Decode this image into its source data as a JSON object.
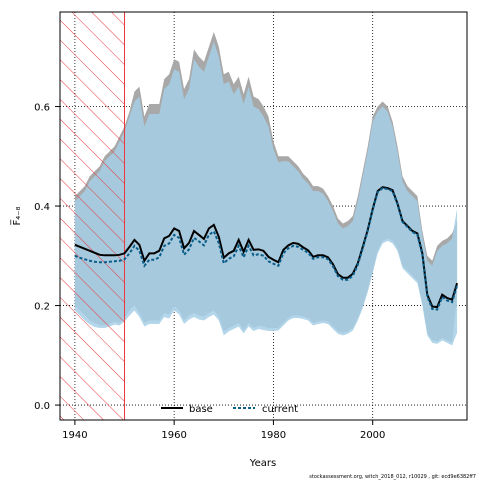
{
  "chart_data": {
    "type": "line",
    "xlabel": "Years",
    "ylabel": "F̅₄₋₈",
    "xlim": [
      1937,
      2019
    ],
    "ylim": [
      -0.03,
      0.79
    ],
    "xticks": [
      1940,
      1960,
      1980,
      2000
    ],
    "yticks": [
      0.0,
      0.2,
      0.4,
      0.6
    ],
    "xtick_labels": [
      "1940",
      "1960",
      "1980",
      "2000"
    ],
    "ytick_labels": [
      "0.0",
      "0.2",
      "0.4",
      "0.6"
    ],
    "grid": true,
    "legend_position": "bottom-center",
    "shaded_region": {
      "x_start": 1937,
      "x_end": 1950,
      "style": "red diagonal hatching"
    },
    "colors": {
      "base_band": "#a8a8a8",
      "current_band": "#a6cfe6",
      "overlap_band": "#a3c3d5",
      "base_line": "#000000",
      "current_line": "#0b5e8a",
      "hatch": "#e8383d"
    },
    "x": [
      1940,
      1941,
      1942,
      1943,
      1944,
      1945,
      1946,
      1947,
      1948,
      1949,
      1950,
      1951,
      1952,
      1953,
      1954,
      1955,
      1956,
      1957,
      1958,
      1959,
      1960,
      1961,
      1962,
      1963,
      1964,
      1965,
      1966,
      1967,
      1968,
      1969,
      1970,
      1971,
      1972,
      1973,
      1974,
      1975,
      1976,
      1977,
      1978,
      1979,
      1980,
      1981,
      1982,
      1983,
      1984,
      1985,
      1986,
      1987,
      1988,
      1989,
      1990,
      1991,
      1992,
      1993,
      1994,
      1995,
      1996,
      1997,
      1998,
      1999,
      2000,
      2001,
      2002,
      2003,
      2004,
      2005,
      2006,
      2007,
      2008,
      2009,
      2010,
      2011,
      2012,
      2013,
      2014,
      2015,
      2016,
      2017
    ],
    "series": [
      {
        "name": "base",
        "values": [
          0.322,
          0.318,
          0.314,
          0.31,
          0.306,
          0.302,
          0.301,
          0.301,
          0.301,
          0.302,
          0.305,
          0.318,
          0.332,
          0.322,
          0.29,
          0.305,
          0.305,
          0.31,
          0.335,
          0.34,
          0.355,
          0.35,
          0.315,
          0.326,
          0.35,
          0.342,
          0.334,
          0.355,
          0.362,
          0.338,
          0.296,
          0.305,
          0.31,
          0.332,
          0.308,
          0.332,
          0.312,
          0.313,
          0.31,
          0.298,
          0.292,
          0.287,
          0.312,
          0.321,
          0.326,
          0.324,
          0.317,
          0.311,
          0.298,
          0.301,
          0.301,
          0.297,
          0.283,
          0.263,
          0.256,
          0.256,
          0.264,
          0.285,
          0.318,
          0.352,
          0.394,
          0.43,
          0.438,
          0.436,
          0.432,
          0.405,
          0.37,
          0.36,
          0.35,
          0.345,
          0.305,
          0.222,
          0.198,
          0.197,
          0.222,
          0.215,
          0.212,
          0.245
        ],
        "lower": [
          0.2,
          0.19,
          0.18,
          0.17,
          0.165,
          0.16,
          0.16,
          0.163,
          0.168,
          0.165,
          0.175,
          0.19,
          0.2,
          0.185,
          0.165,
          0.17,
          0.17,
          0.17,
          0.185,
          0.182,
          0.2,
          0.19,
          0.17,
          0.18,
          0.185,
          0.18,
          0.178,
          0.185,
          0.19,
          0.178,
          0.148,
          0.155,
          0.16,
          0.165,
          0.15,
          0.165,
          0.155,
          0.16,
          0.158,
          0.155,
          0.155,
          0.155,
          0.165,
          0.175,
          0.18,
          0.18,
          0.178,
          0.175,
          0.165,
          0.168,
          0.17,
          0.168,
          0.158,
          0.148,
          0.145,
          0.148,
          0.155,
          0.175,
          0.2,
          0.232,
          0.27,
          0.31,
          0.33,
          0.335,
          0.33,
          0.315,
          0.28,
          0.27,
          0.26,
          0.25,
          0.205,
          0.145,
          0.13,
          0.128,
          0.135,
          0.13,
          0.125,
          0.22
        ],
        "upper": [
          0.42,
          0.43,
          0.44,
          0.46,
          0.47,
          0.48,
          0.5,
          0.51,
          0.52,
          0.54,
          0.56,
          0.59,
          0.63,
          0.64,
          0.58,
          0.605,
          0.605,
          0.605,
          0.655,
          0.665,
          0.695,
          0.69,
          0.635,
          0.655,
          0.715,
          0.7,
          0.69,
          0.72,
          0.75,
          0.72,
          0.665,
          0.67,
          0.645,
          0.66,
          0.625,
          0.66,
          0.62,
          0.615,
          0.6,
          0.58,
          0.53,
          0.5,
          0.5,
          0.5,
          0.49,
          0.48,
          0.465,
          0.455,
          0.44,
          0.44,
          0.435,
          0.42,
          0.4,
          0.375,
          0.365,
          0.37,
          0.38,
          0.42,
          0.47,
          0.52,
          0.58,
          0.6,
          0.61,
          0.6,
          0.57,
          0.52,
          0.46,
          0.44,
          0.43,
          0.42,
          0.35,
          0.3,
          0.29,
          0.32,
          0.33,
          0.335,
          0.345,
          0.37
        ]
      },
      {
        "name": "current",
        "values": [
          0.3,
          0.296,
          0.293,
          0.29,
          0.288,
          0.287,
          0.287,
          0.288,
          0.289,
          0.29,
          0.293,
          0.305,
          0.32,
          0.31,
          0.28,
          0.292,
          0.292,
          0.297,
          0.32,
          0.325,
          0.342,
          0.336,
          0.302,
          0.313,
          0.336,
          0.329,
          0.321,
          0.342,
          0.349,
          0.325,
          0.285,
          0.294,
          0.299,
          0.32,
          0.297,
          0.32,
          0.301,
          0.303,
          0.3,
          0.289,
          0.284,
          0.28,
          0.305,
          0.315,
          0.32,
          0.318,
          0.312,
          0.306,
          0.294,
          0.297,
          0.297,
          0.293,
          0.279,
          0.259,
          0.252,
          0.252,
          0.26,
          0.282,
          0.315,
          0.35,
          0.392,
          0.428,
          0.436,
          0.434,
          0.43,
          0.403,
          0.368,
          0.358,
          0.348,
          0.342,
          0.302,
          0.218,
          0.193,
          0.192,
          0.217,
          0.21,
          0.207,
          0.24
        ],
        "lower": [
          0.19,
          0.18,
          0.17,
          0.162,
          0.157,
          0.155,
          0.155,
          0.158,
          0.162,
          0.16,
          0.168,
          0.18,
          0.19,
          0.177,
          0.158,
          0.163,
          0.163,
          0.163,
          0.177,
          0.174,
          0.19,
          0.182,
          0.163,
          0.172,
          0.177,
          0.172,
          0.17,
          0.177,
          0.182,
          0.17,
          0.14,
          0.148,
          0.153,
          0.158,
          0.144,
          0.158,
          0.149,
          0.153,
          0.151,
          0.149,
          0.149,
          0.15,
          0.16,
          0.17,
          0.175,
          0.175,
          0.173,
          0.17,
          0.16,
          0.163,
          0.165,
          0.163,
          0.153,
          0.143,
          0.14,
          0.143,
          0.15,
          0.17,
          0.195,
          0.227,
          0.265,
          0.305,
          0.325,
          0.33,
          0.325,
          0.31,
          0.275,
          0.265,
          0.255,
          0.245,
          0.2,
          0.14,
          0.125,
          0.123,
          0.13,
          0.125,
          0.12,
          0.145
        ],
        "upper": [
          0.41,
          0.42,
          0.43,
          0.45,
          0.46,
          0.47,
          0.49,
          0.5,
          0.51,
          0.53,
          0.55,
          0.58,
          0.61,
          0.62,
          0.56,
          0.585,
          0.585,
          0.585,
          0.635,
          0.645,
          0.675,
          0.67,
          0.615,
          0.635,
          0.695,
          0.68,
          0.67,
          0.7,
          0.73,
          0.7,
          0.645,
          0.65,
          0.625,
          0.64,
          0.605,
          0.64,
          0.6,
          0.595,
          0.58,
          0.56,
          0.515,
          0.488,
          0.49,
          0.49,
          0.48,
          0.47,
          0.455,
          0.445,
          0.43,
          0.43,
          0.425,
          0.41,
          0.39,
          0.365,
          0.355,
          0.36,
          0.37,
          0.41,
          0.46,
          0.51,
          0.57,
          0.59,
          0.6,
          0.59,
          0.56,
          0.51,
          0.45,
          0.43,
          0.42,
          0.41,
          0.34,
          0.29,
          0.28,
          0.31,
          0.32,
          0.325,
          0.335,
          0.395
        ]
      }
    ]
  },
  "legend": {
    "base_label": "base",
    "current_label": "current"
  },
  "footnote": "stockassessment.org, witch_2018_012, r10029 , git: ecd9e6382ff7"
}
